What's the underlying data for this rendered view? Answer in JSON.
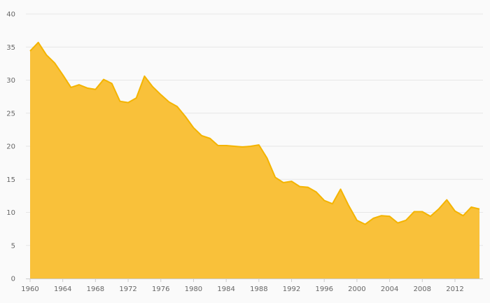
{
  "chart_data": {
    "type": "area",
    "title": "",
    "xlabel": "",
    "ylabel": "",
    "xlim": [
      1960,
      2015
    ],
    "ylim": [
      0,
      40
    ],
    "grid": true,
    "legend": "none",
    "fill_color": "#f9c13a",
    "line_color": "#f4b400",
    "x_ticks": [
      1960,
      1964,
      1968,
      1972,
      1976,
      1980,
      1984,
      1988,
      1992,
      1996,
      2000,
      2004,
      2008,
      2012
    ],
    "y_ticks": [
      0,
      5,
      10,
      15,
      20,
      25,
      30,
      35,
      40
    ],
    "x": [
      1960,
      1961,
      1962,
      1963,
      1964,
      1965,
      1966,
      1967,
      1968,
      1969,
      1970,
      1971,
      1972,
      1973,
      1974,
      1975,
      1976,
      1977,
      1978,
      1979,
      1980,
      1981,
      1982,
      1983,
      1984,
      1985,
      1986,
      1987,
      1988,
      1989,
      1990,
      1991,
      1992,
      1993,
      1994,
      1995,
      1996,
      1997,
      1998,
      1999,
      2000,
      2001,
      2002,
      2003,
      2004,
      2005,
      2006,
      2007,
      2008,
      2009,
      2010,
      2011,
      2012,
      2013,
      2014,
      2015
    ],
    "values": [
      34.4,
      35.7,
      33.8,
      32.6,
      30.8,
      28.9,
      29.3,
      28.8,
      28.6,
      30.1,
      29.5,
      26.8,
      26.6,
      27.3,
      30.6,
      29.0,
      27.8,
      26.7,
      26.0,
      24.5,
      22.8,
      21.6,
      21.2,
      20.1,
      20.1,
      20.0,
      19.9,
      20.0,
      20.2,
      18.2,
      15.3,
      14.5,
      14.7,
      13.9,
      13.8,
      13.1,
      11.8,
      11.3,
      13.5,
      11.0,
      8.8,
      8.2,
      9.1,
      9.5,
      9.4,
      8.4,
      8.8,
      10.1,
      10.1,
      9.4,
      10.5,
      11.9,
      10.2,
      9.5,
      10.8,
      10.5
    ]
  }
}
